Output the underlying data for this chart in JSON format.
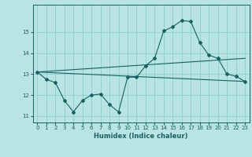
{
  "xlabel": "Humidex (Indice chaleur)",
  "xlim": [
    -0.5,
    23.5
  ],
  "ylim": [
    10.7,
    16.3
  ],
  "yticks": [
    11,
    12,
    13,
    14,
    15
  ],
  "xticks": [
    0,
    1,
    2,
    3,
    4,
    5,
    6,
    7,
    8,
    9,
    10,
    11,
    12,
    13,
    14,
    15,
    16,
    17,
    18,
    19,
    20,
    21,
    22,
    23
  ],
  "bg_color": "#b8e4e4",
  "grid_color": "#8ecece",
  "line_color": "#1a6060",
  "line1_x": [
    0,
    1,
    2,
    3,
    4,
    5,
    6,
    7,
    8,
    9,
    10,
    11,
    12,
    13,
    14,
    15,
    16,
    17,
    18,
    19,
    20,
    21,
    22,
    23
  ],
  "line1_y": [
    13.1,
    12.75,
    12.6,
    11.75,
    11.2,
    11.75,
    12.0,
    12.05,
    11.55,
    11.2,
    12.85,
    12.85,
    13.4,
    13.75,
    15.05,
    15.25,
    15.55,
    15.5,
    14.5,
    13.9,
    13.75,
    13.0,
    12.9,
    12.65
  ],
  "line2_x": [
    0,
    23
  ],
  "line2_y": [
    13.1,
    12.65
  ],
  "line3_x": [
    0,
    23
  ],
  "line3_y": [
    13.1,
    13.75
  ]
}
